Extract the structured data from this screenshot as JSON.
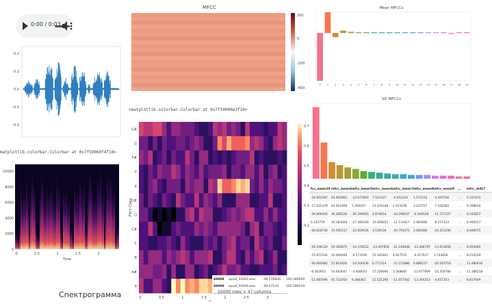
{
  "audio": {
    "time": "0:00 / 0:03"
  },
  "waveform": {
    "yticks": [
      "0.2",
      "0.1",
      "0.0",
      "-0.1",
      "-0.2"
    ]
  },
  "mpl_notes": {
    "left": "matplotlib.colorbar.Colorbar at 0x7f59000f4f10>",
    "middle": "<matplotlib.colorbar.Colorbar at 0x7f59000e3f10>"
  },
  "spectrogram": {
    "yticks": [
      "10000",
      "8000",
      "6000",
      "4000",
      "2000",
      "0"
    ],
    "xticks": [
      "0",
      "0.5",
      "1",
      "1.5",
      "2"
    ],
    "xlabel": "Time",
    "caption": "Спектрограмма"
  },
  "mfcc_heatmap": {
    "title": "MFCC",
    "colorbar_ticks": [
      "200",
      "0",
      "-200",
      "-400"
    ]
  },
  "chroma": {
    "ylabels": [
      "A",
      "A#",
      "B",
      "C",
      "C#",
      "D",
      "D#",
      "E",
      "F",
      "F#",
      "G",
      "G#"
    ],
    "ylabel": "Pitch Class",
    "xticks": [
      "0",
      "0.5",
      "1",
      "1.5",
      "2",
      "2.5",
      "3"
    ],
    "xlabel": "Time",
    "colorbar_ticks": [
      "0.7",
      "0.6",
      "0.5",
      "0.4",
      "0.3",
      "0.2"
    ]
  },
  "chart_data": [
    {
      "type": "bar",
      "title": "Mean MFCCs",
      "categories": [
        "0",
        "1",
        "2",
        "3",
        "4",
        "5",
        "6",
        "7",
        "8",
        "9",
        "10",
        "11",
        "12",
        "13",
        "14",
        "15",
        "16",
        "17",
        "18",
        "19"
      ],
      "values": [
        -230,
        100,
        -20,
        12,
        6,
        4,
        3,
        2,
        1,
        2,
        3,
        2,
        1,
        4,
        1,
        2,
        1,
        -1,
        0,
        1
      ]
    },
    {
      "type": "bar",
      "title": "SD MFCCs",
      "values": [
        95,
        48,
        22,
        18,
        15,
        13,
        10,
        9,
        8,
        7,
        6,
        6,
        5,
        5,
        5,
        4,
        4,
        4,
        3,
        3
      ]
    }
  ],
  "table": {
    "headers": [
      "fcc_mean10",
      "mfcc_mean6",
      "mfcc_mean5",
      "mfcc_mean6",
      "mfcc_mean7",
      "mfcc_mean8",
      "mfcc_mean9",
      "...",
      "mfcc_std17"
    ],
    "rows": [
      [
        "-24.901587",
        "63.902962",
        "-12.673929",
        "7.521337",
        "-4.052243",
        "1.571152",
        "-4.497536",
        "...",
        "5.337415"
      ],
      [
        "-17.022379",
        "44.921906",
        "5.200197",
        "13.416348",
        "1.653196",
        "3.223727",
        "-7.332282",
        "...",
        "9.398616"
      ],
      [
        "-36.866430",
        "36.266526",
        "-26.299050",
        "4.874654",
        "-24.296037",
        "-0.344528",
        "-11.727227",
        "...",
        "9.243837"
      ],
      [
        "0.145759",
        "56.383604",
        "-27.496300",
        "14.926652",
        "-11.114817",
        "2.981680",
        "-8.257433",
        "...",
        "6.946517"
      ],
      [
        "-40.818730",
        "33.505517",
        "-22.009526",
        "3.530534",
        "-20.791471",
        "2.681680",
        "-24.251290",
        "...",
        "6.046075"
      ],
      [
        "",
        "",
        "",
        "",
        "",
        "",
        "",
        "",
        ""
      ],
      [
        "-56.196120",
        "29.392875",
        "-54.378552",
        "-13.497856",
        "-21.149448",
        "-23.286797",
        "-13.653656",
        "...",
        "6.959485"
      ],
      [
        "-15.872544",
        "32.494940",
        "-9.573299",
        "15.345461",
        "4.927555",
        "-4.417617",
        "3.744836",
        "...",
        "8.014539"
      ],
      [
        "-40.940485",
        "51.811820",
        "-14.166636",
        "6.771314",
        "-15.215886",
        "6.886537",
        "-20.187518",
        "...",
        "11.480436"
      ],
      [
        "-6.563953",
        "54.603647",
        "-3.408054",
        "17.226690",
        "3.348685",
        "-12.677899",
        "-14.356784",
        "...",
        "11.386518"
      ],
      [
        "-11.087096",
        "45.722050",
        "9.384361",
        "12.521290",
        "-11.657362",
        "-13.304213",
        "-4.657143",
        "...",
        "8.817649"
      ]
    ],
    "left_rows": [
      {
        "idx": "49998",
        "file": "spoof_34462.wav",
        "v1": "-49.576830",
        "v2": "165.346940"
      },
      {
        "idx": "49999",
        "file": "spoof_34164.wav",
        "v1": "-49.57134",
        "v2": "165.188530"
      }
    ],
    "footer": "50000 rows × 47 columns"
  }
}
